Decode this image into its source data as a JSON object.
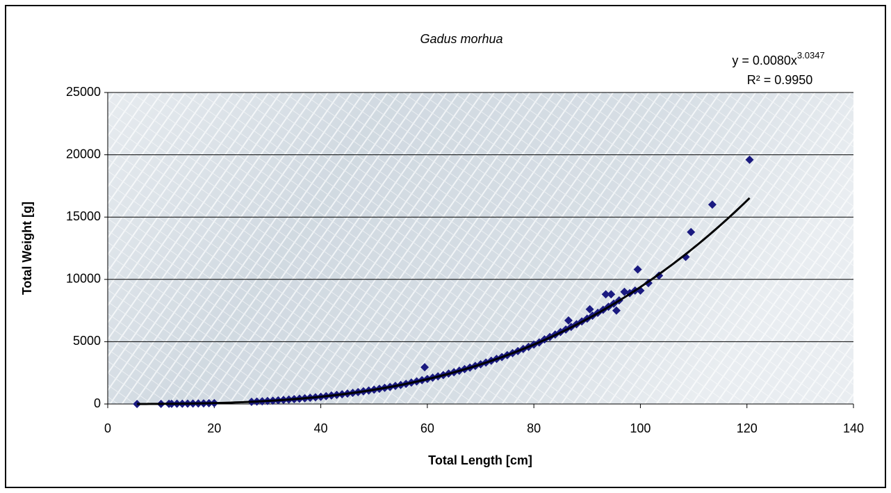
{
  "chart_data": {
    "type": "scatter",
    "title": "Gadus morhua",
    "x_label": "Total Length [cm]",
    "y_label": "Total Weight [g]",
    "color": "#1a1a80",
    "xlim": [
      0,
      140
    ],
    "xticks": [
      0,
      20,
      40,
      60,
      80,
      100,
      120,
      140
    ],
    "ylim": [
      0,
      25000
    ],
    "yticks": [
      0,
      5000,
      10000,
      15000,
      20000,
      25000
    ],
    "grid": true,
    "x": [
      5.5,
      10,
      11.5,
      12,
      13,
      14,
      15,
      16,
      17,
      18,
      19,
      20,
      27,
      28,
      29,
      30,
      31,
      32,
      33,
      34,
      35,
      36,
      37,
      38,
      39,
      40,
      41,
      42,
      43,
      44,
      45,
      46,
      47,
      48,
      49,
      50,
      51,
      52,
      53,
      54,
      55,
      56,
      57,
      58,
      59,
      59.5,
      60,
      61,
      62,
      63,
      64,
      65,
      66,
      67,
      68,
      69,
      70,
      71,
      72,
      73,
      74,
      75,
      76,
      77,
      78,
      79,
      80,
      81,
      82,
      83,
      84,
      85,
      86,
      86.5,
      87,
      88,
      89,
      90,
      90.5,
      91,
      92,
      93,
      93.5,
      94,
      94.5,
      95,
      95.5,
      96,
      97,
      98,
      99,
      99.5,
      100,
      101.5,
      103.5,
      108.5,
      109.5,
      113.5,
      120.5
    ],
    "values": [
      2,
      9,
      13,
      15,
      19,
      24,
      30,
      36,
      43,
      51,
      60,
      70,
      175,
      195,
      219,
      243,
      268,
      295,
      327,
      358,
      390,
      425,
      461,
      499,
      540,
      582,
      627,
      682,
      731,
      784,
      838,
      895,
      955,
      1017,
      1082,
      1150,
      1220,
      1294,
      1370,
      1449,
      1531,
      1616,
      1722,
      1815,
      1910,
      2950,
      2009,
      2111,
      2216,
      2325,
      2438,
      2554,
      2674,
      2797,
      2924,
      3055,
      3190,
      3329,
      3471,
      3618,
      3769,
      3923,
      4082,
      4246,
      4413,
      4585,
      4770,
      4942,
      5183,
      5375,
      5571,
      5773,
      5979,
      6700,
      6190,
      6406,
      6627,
      6853,
      7600,
      7084,
      7320,
      7561,
      8800,
      7807,
      8800,
      8059,
      7500,
      8317,
      9000,
      8900,
      9100,
      10800,
      9100,
      9700,
      10300,
      11800,
      13800,
      16000,
      19600
    ],
    "trendline": {
      "a": 0.008,
      "b": 3.0347,
      "xrange": [
        5.5,
        120.5
      ],
      "color": "#000000",
      "equation": "y = 0.0080x",
      "exponent": "3.0347",
      "r_squared": "R² = 0.9950"
    }
  }
}
